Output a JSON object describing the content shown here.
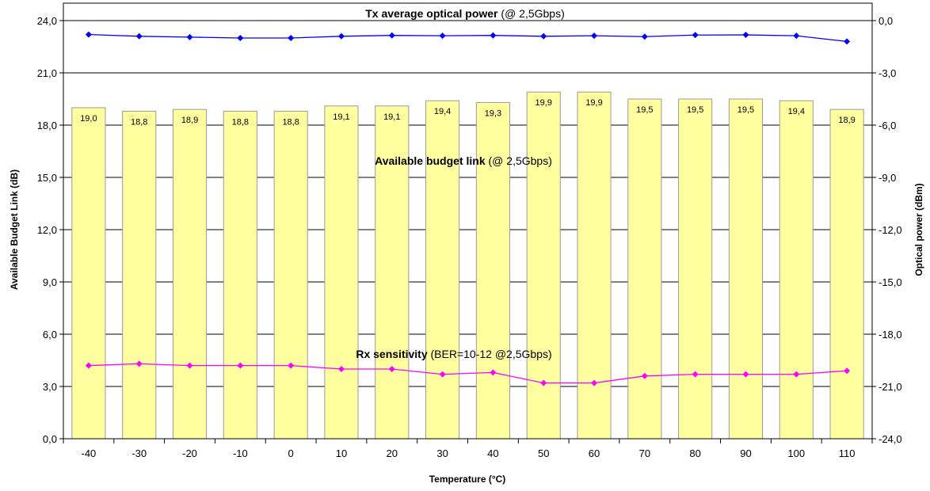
{
  "chart_data": {
    "type": "bar",
    "categories": [
      "-40",
      "-30",
      "-20",
      "-10",
      "0",
      "10",
      "20",
      "30",
      "40",
      "50",
      "60",
      "70",
      "80",
      "90",
      "100",
      "110"
    ],
    "xlabel": "Temperature (°C)",
    "ylabel": "Available Budget Link (dB)",
    "y2label": "Optical power (dBm)",
    "ylim": [
      0,
      25
    ],
    "y2lim": [
      -24,
      1
    ],
    "yticks": [
      "0,0",
      "3,0",
      "6,0",
      "9,0",
      "12,0",
      "15,0",
      "18,0",
      "21,0",
      "24,0"
    ],
    "y2ticks": [
      "-24,0",
      "-21,0",
      "-18,0",
      "-15,0",
      "-12,0",
      "-9,0",
      "-6,0",
      "-3,0",
      "0,0"
    ],
    "grid": true,
    "bars": {
      "axis": "left",
      "values": [
        19.0,
        18.8,
        18.9,
        18.8,
        18.8,
        19.1,
        19.1,
        19.4,
        19.3,
        19.9,
        19.9,
        19.5,
        19.5,
        19.5,
        19.4,
        18.9
      ],
      "labels": [
        "19,0",
        "18,8",
        "18,9",
        "18,8",
        "18,8",
        "19,1",
        "19,1",
        "19,4",
        "19,3",
        "19,9",
        "19,9",
        "19,5",
        "19,5",
        "19,5",
        "19,4",
        "18,9"
      ],
      "color": "#FFFFA0"
    },
    "series": [
      {
        "axis": "right",
        "values": [
          -0.8,
          -0.9,
          -0.95,
          -1.0,
          -1.0,
          -0.9,
          -0.85,
          -0.87,
          -0.85,
          -0.9,
          -0.87,
          -0.92,
          -0.83,
          -0.82,
          -0.87,
          -1.2
        ],
        "color": "#0000FF"
      },
      {
        "axis": "right",
        "values": [
          -19.8,
          -19.7,
          -19.8,
          -19.8,
          -19.8,
          -20.0,
          -20.0,
          -20.3,
          -20.2,
          -20.8,
          -20.8,
          -20.4,
          -20.3,
          -20.3,
          -20.3,
          -20.1
        ],
        "color": "#FF00FF"
      }
    ],
    "annotations": [
      {
        "bold": "Tx average optical power",
        "normal": " (@ 2,5Gbps)"
      },
      {
        "bold": "Available budget link",
        "normal": " (@ 2,5Gbps)"
      },
      {
        "bold": "Rx sensitivity",
        "normal": " (BER=10-12 @2,5Gbps)"
      }
    ]
  }
}
